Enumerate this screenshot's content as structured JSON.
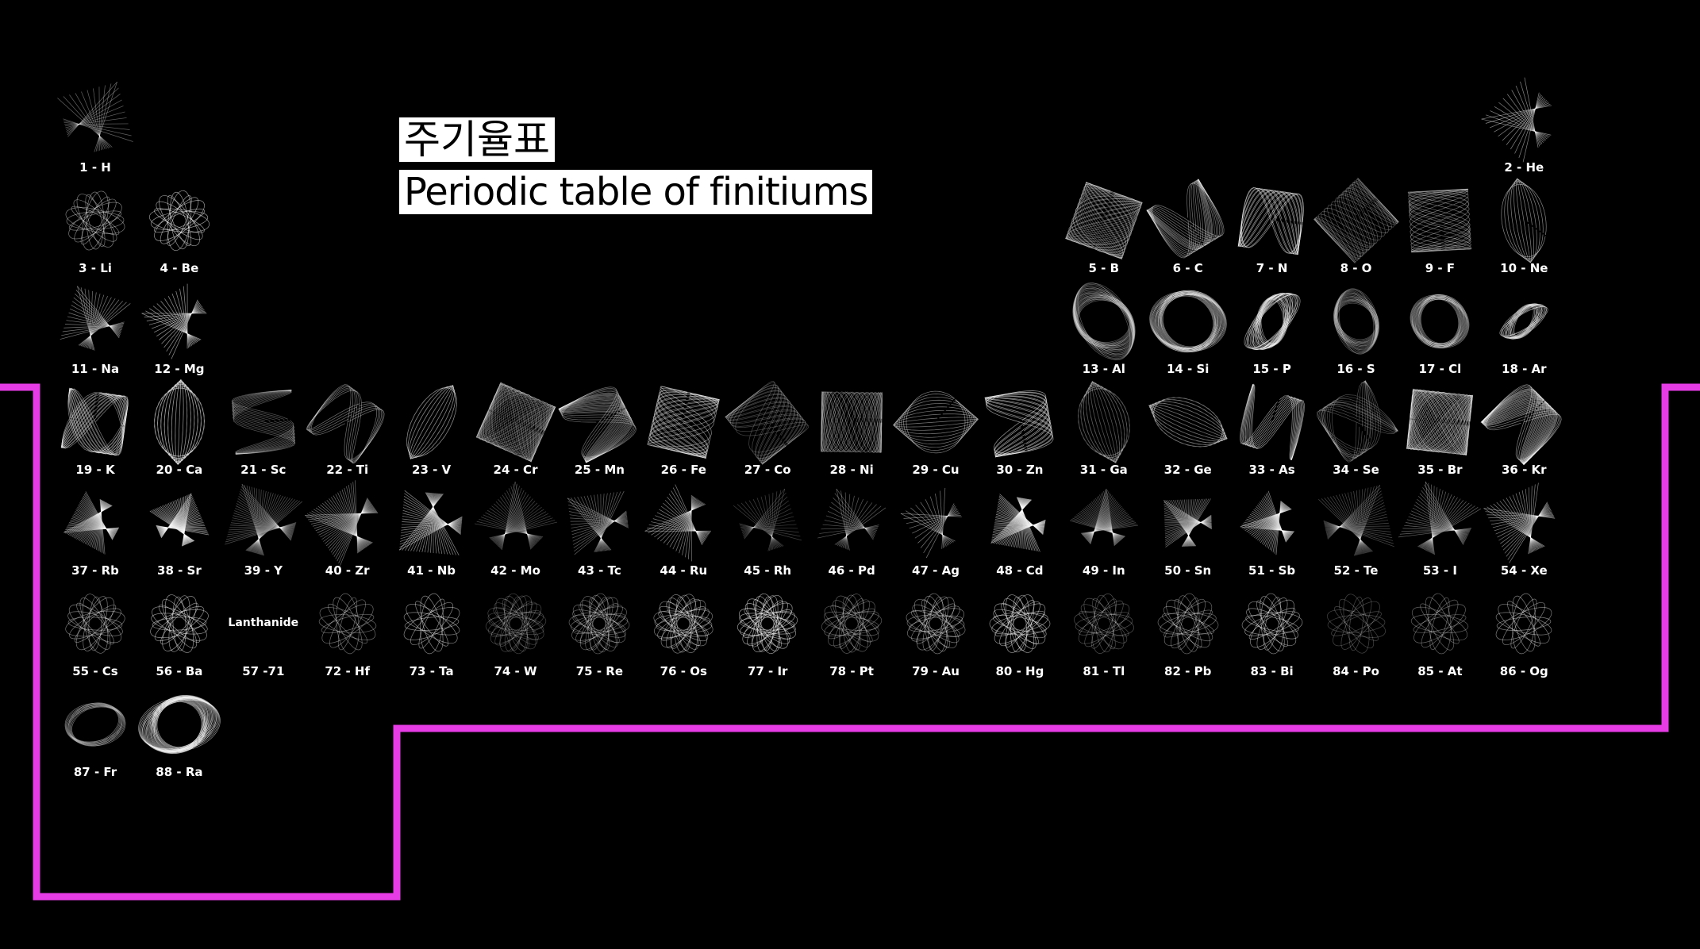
{
  "title_ko": "주기율표",
  "title_en": "Periodic table of finitiums",
  "colors": {
    "background": "#000000",
    "outline": "#e63ce6",
    "figure": "#ffffff"
  },
  "lanthanide_label": "Lanthanide",
  "elements": [
    {
      "label": "1 - H",
      "row": 1,
      "col": 1
    },
    {
      "label": "2 - He",
      "row": 1,
      "col": 18
    },
    {
      "label": "3 - Li",
      "row": 2,
      "col": 1
    },
    {
      "label": "4 - Be",
      "row": 2,
      "col": 2
    },
    {
      "label": "5 - B",
      "row": 2,
      "col": 13
    },
    {
      "label": "6 - C",
      "row": 2,
      "col": 14
    },
    {
      "label": "7 - N",
      "row": 2,
      "col": 15
    },
    {
      "label": "8 - O",
      "row": 2,
      "col": 16
    },
    {
      "label": "9 - F",
      "row": 2,
      "col": 17
    },
    {
      "label": "10 - Ne",
      "row": 2,
      "col": 18
    },
    {
      "label": "11 - Na",
      "row": 3,
      "col": 1
    },
    {
      "label": "12 - Mg",
      "row": 3,
      "col": 2
    },
    {
      "label": "13 - Al",
      "row": 3,
      "col": 13
    },
    {
      "label": "14 - Si",
      "row": 3,
      "col": 14
    },
    {
      "label": "15 - P",
      "row": 3,
      "col": 15
    },
    {
      "label": "16 - S",
      "row": 3,
      "col": 16
    },
    {
      "label": "17 - Cl",
      "row": 3,
      "col": 17
    },
    {
      "label": "18 - Ar",
      "row": 3,
      "col": 18
    },
    {
      "label": "19 - K",
      "row": 4,
      "col": 1
    },
    {
      "label": "20 - Ca",
      "row": 4,
      "col": 2
    },
    {
      "label": "21 - Sc",
      "row": 4,
      "col": 3
    },
    {
      "label": "22 - Ti",
      "row": 4,
      "col": 4
    },
    {
      "label": "23 - V",
      "row": 4,
      "col": 5
    },
    {
      "label": "24 - Cr",
      "row": 4,
      "col": 6
    },
    {
      "label": "25 - Mn",
      "row": 4,
      "col": 7
    },
    {
      "label": "26 - Fe",
      "row": 4,
      "col": 8
    },
    {
      "label": "27 - Co",
      "row": 4,
      "col": 9
    },
    {
      "label": "28 - Ni",
      "row": 4,
      "col": 10
    },
    {
      "label": "29 - Cu",
      "row": 4,
      "col": 11
    },
    {
      "label": "30 - Zn",
      "row": 4,
      "col": 12
    },
    {
      "label": "31 - Ga",
      "row": 4,
      "col": 13
    },
    {
      "label": "32 - Ge",
      "row": 4,
      "col": 14
    },
    {
      "label": "33 - As",
      "row": 4,
      "col": 15
    },
    {
      "label": "34 - Se",
      "row": 4,
      "col": 16
    },
    {
      "label": "35 - Br",
      "row": 4,
      "col": 17
    },
    {
      "label": "36 - Kr",
      "row": 4,
      "col": 18
    },
    {
      "label": "37 - Rb",
      "row": 5,
      "col": 1
    },
    {
      "label": "38 - Sr",
      "row": 5,
      "col": 2
    },
    {
      "label": "39 - Y",
      "row": 5,
      "col": 3
    },
    {
      "label": "40 - Zr",
      "row": 5,
      "col": 4
    },
    {
      "label": "41 - Nb",
      "row": 5,
      "col": 5
    },
    {
      "label": "42 - Mo",
      "row": 5,
      "col": 6
    },
    {
      "label": "43 - Tc",
      "row": 5,
      "col": 7
    },
    {
      "label": "44 - Ru",
      "row": 5,
      "col": 8
    },
    {
      "label": "45 - Rh",
      "row": 5,
      "col": 9
    },
    {
      "label": "46 - Pd",
      "row": 5,
      "col": 10
    },
    {
      "label": "47 - Ag",
      "row": 5,
      "col": 11
    },
    {
      "label": "48 - Cd",
      "row": 5,
      "col": 12
    },
    {
      "label": "49 - In",
      "row": 5,
      "col": 13
    },
    {
      "label": "50 - Sn",
      "row": 5,
      "col": 14
    },
    {
      "label": "51 - Sb",
      "row": 5,
      "col": 15
    },
    {
      "label": "52 - Te",
      "row": 5,
      "col": 16
    },
    {
      "label": "53 - I",
      "row": 5,
      "col": 17
    },
    {
      "label": "54 - Xe",
      "row": 5,
      "col": 18
    },
    {
      "label": "55 - Cs",
      "row": 6,
      "col": 1
    },
    {
      "label": "56 - Ba",
      "row": 6,
      "col": 2
    },
    {
      "label": "57 -71",
      "row": 6,
      "col": 3,
      "lanthanide": true
    },
    {
      "label": "72 - Hf",
      "row": 6,
      "col": 4
    },
    {
      "label": "73 - Ta",
      "row": 6,
      "col": 5
    },
    {
      "label": "74 - W",
      "row": 6,
      "col": 6
    },
    {
      "label": "75 - Re",
      "row": 6,
      "col": 7
    },
    {
      "label": "76 - Os",
      "row": 6,
      "col": 8
    },
    {
      "label": "77 - Ir",
      "row": 6,
      "col": 9
    },
    {
      "label": "78 - Pt",
      "row": 6,
      "col": 10
    },
    {
      "label": "79 - Au",
      "row": 6,
      "col": 11
    },
    {
      "label": "80 - Hg",
      "row": 6,
      "col": 12
    },
    {
      "label": "81 - Tl",
      "row": 6,
      "col": 13
    },
    {
      "label": "82 - Pb",
      "row": 6,
      "col": 14
    },
    {
      "label": "83 - Bi",
      "row": 6,
      "col": 15
    },
    {
      "label": "84 - Po",
      "row": 6,
      "col": 16
    },
    {
      "label": "85 - At",
      "row": 6,
      "col": 17
    },
    {
      "label": "86 - Og",
      "row": 6,
      "col": 18
    },
    {
      "label": "87 - Fr",
      "row": 7,
      "col": 1
    },
    {
      "label": "88 - Ra",
      "row": 7,
      "col": 2
    }
  ]
}
